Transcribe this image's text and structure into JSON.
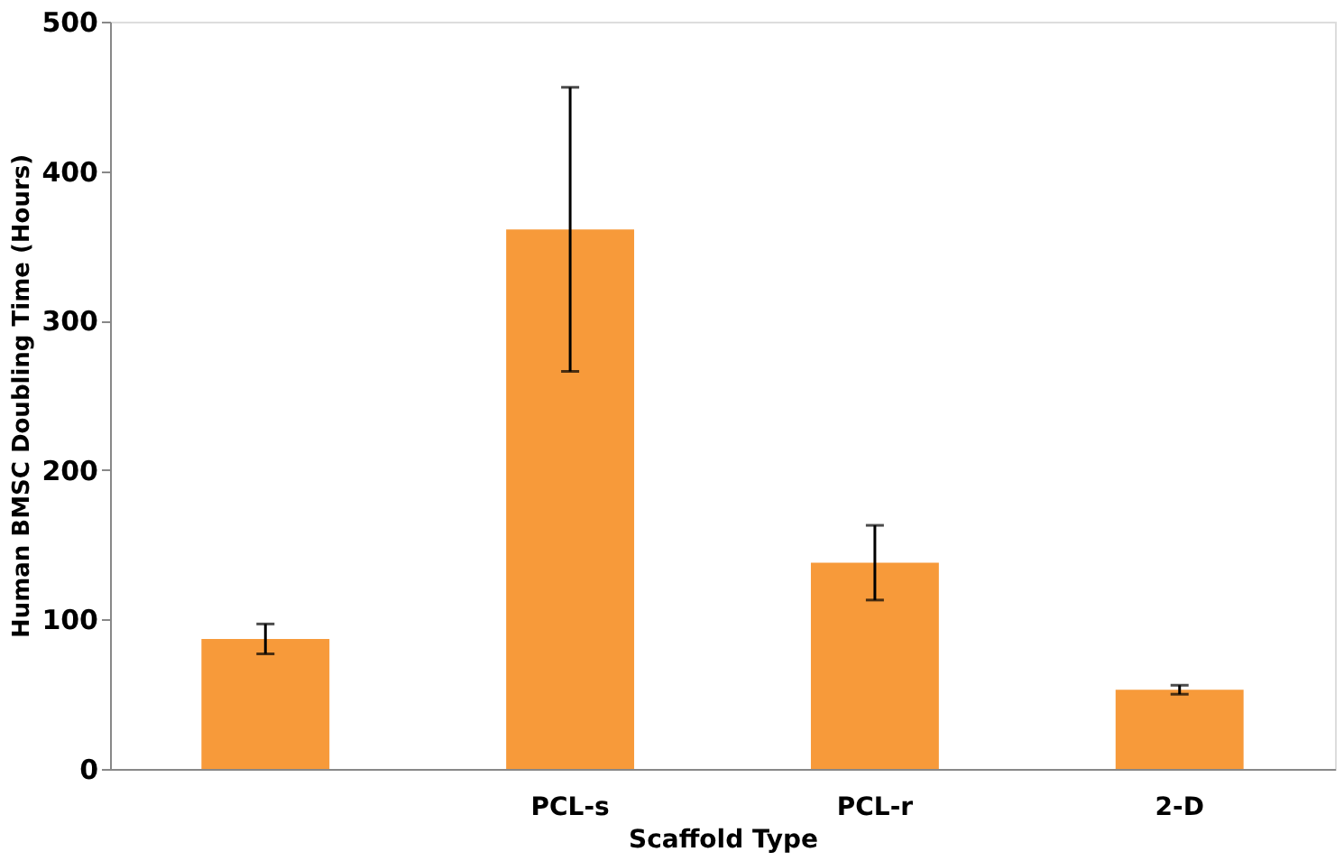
{
  "chart_data": {
    "type": "bar",
    "xlabel": "Scaffold Type",
    "ylabel": "Human BMSC Doubling Time (Hours)",
    "categories": [
      null,
      "PCL-s",
      "PCL-r",
      "2-D"
    ],
    "values": [
      87,
      361,
      138,
      53
    ],
    "errors": [
      10,
      95,
      25,
      3
    ],
    "color": "#f79a3a",
    "ylim": [
      0,
      500
    ],
    "yticks": [
      0,
      100,
      200,
      300,
      400,
      500
    ],
    "grid": false
  }
}
